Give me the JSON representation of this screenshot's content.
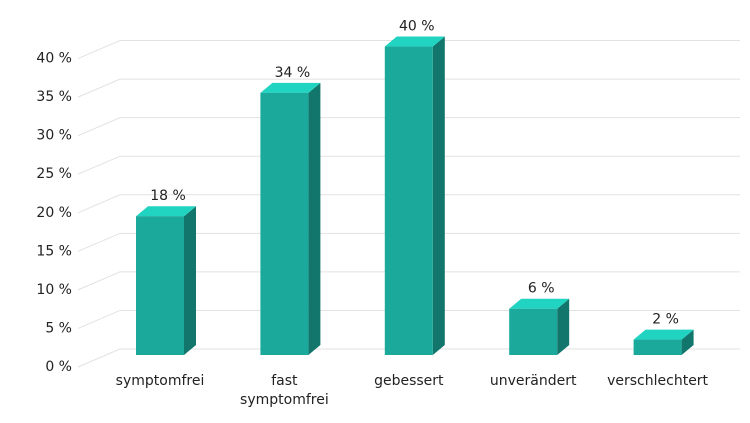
{
  "chart_data": {
    "type": "bar",
    "categories": [
      "symptomfrei",
      "fast symptomfrei",
      "gebessert",
      "unverändert",
      "verschlechtert"
    ],
    "values": [
      18,
      34,
      40,
      6,
      2
    ],
    "value_labels": [
      "18 %",
      "34 %",
      "40 %",
      "6 %",
      "2 %"
    ],
    "color": "#1aa99a",
    "ylim": [
      0,
      45
    ],
    "yticks": [
      {
        "value": 0,
        "label": "0 %"
      },
      {
        "value": 5,
        "label": "5 %"
      },
      {
        "value": 10,
        "label": "10 %"
      },
      {
        "value": 15,
        "label": "15 %"
      },
      {
        "value": 20,
        "label": "20 %"
      },
      {
        "value": 25,
        "label": "25 %"
      },
      {
        "value": 30,
        "label": "30 %"
      },
      {
        "value": 35,
        "label": "35 %"
      },
      {
        "value": 40,
        "label": "40 %"
      }
    ],
    "grid": true
  }
}
